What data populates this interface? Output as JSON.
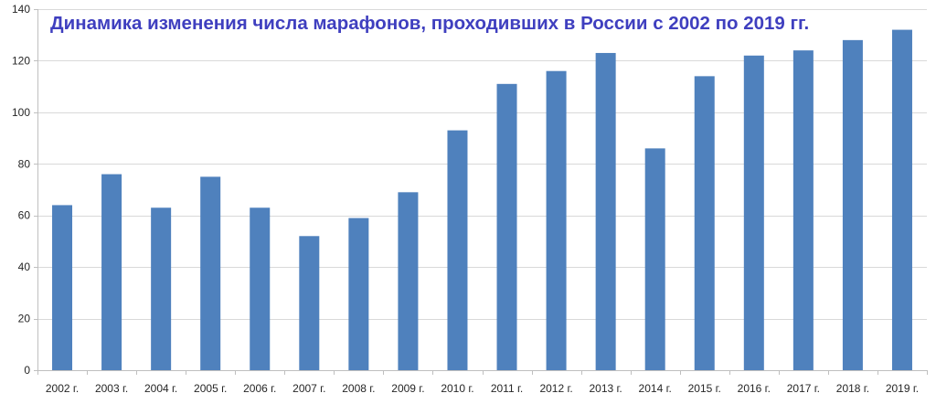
{
  "chart_data": {
    "type": "bar",
    "title": "Динамика изменения числа марафонов, проходивших в России с 2002 по 2019 гг.",
    "categories": [
      "2002 г.",
      "2003 г.",
      "2004 г.",
      "2005 г.",
      "2006 г.",
      "2007 г.",
      "2008 г.",
      "2009 г.",
      "2010 г.",
      "2011 г.",
      "2012 г.",
      "2013 г.",
      "2014 г.",
      "2015 г.",
      "2016 г.",
      "2017 г.",
      "2018 г.",
      "2019 г."
    ],
    "values": [
      64,
      76,
      63,
      75,
      63,
      52,
      59,
      69,
      93,
      111,
      116,
      123,
      86,
      114,
      122,
      124,
      128,
      132
    ],
    "xlabel": "",
    "ylabel": "",
    "ylim": [
      0,
      140
    ],
    "yticks": [
      0,
      20,
      40,
      60,
      80,
      100,
      120,
      140
    ],
    "grid": true,
    "legend": "none",
    "bar_color": "#4f81bd",
    "title_color": "#3f3fbf",
    "grid_color": "#d9d9d9",
    "axis_color": "#bfbfbf"
  }
}
